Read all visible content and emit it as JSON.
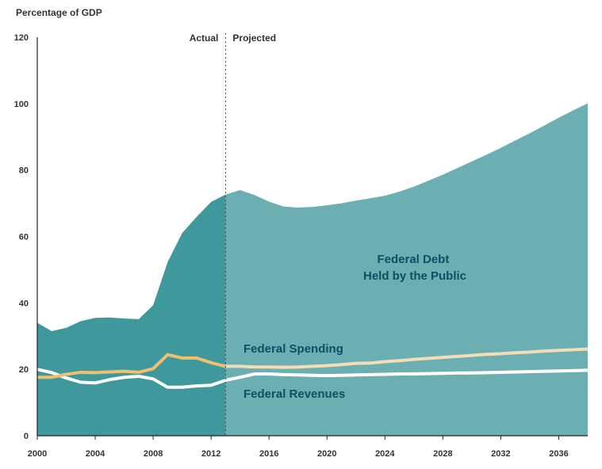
{
  "chart_data": {
    "type": "area",
    "title": "",
    "ylabel": "Percentage of GDP",
    "xlabel": "",
    "xlim": [
      2000,
      2038
    ],
    "ylim": [
      0,
      120
    ],
    "x_ticks": [
      2000,
      2004,
      2008,
      2012,
      2016,
      2020,
      2024,
      2028,
      2032,
      2036
    ],
    "y_ticks": [
      0,
      20,
      40,
      60,
      80,
      100,
      120
    ],
    "grid": false,
    "divider": {
      "x": 2013,
      "left_label": "Actual",
      "right_label": "Projected"
    },
    "colors": {
      "debt_actual": "#3f999c",
      "debt_projected": "#6bafb2",
      "spending": "#f0c070",
      "spending_projected": "#f5ddb8",
      "revenues": "#ffffff",
      "label": "#0d4f63"
    },
    "series": [
      {
        "name": "Federal Debt Held by the Public",
        "label_lines": [
          "Federal Debt",
          "Held by the Public"
        ],
        "kind": "area",
        "x": [
          2000,
          2001,
          2002,
          2003,
          2004,
          2005,
          2006,
          2007,
          2008,
          2009,
          2010,
          2011,
          2012,
          2013,
          2014,
          2015,
          2016,
          2017,
          2018,
          2019,
          2020,
          2021,
          2022,
          2023,
          2024,
          2025,
          2026,
          2027,
          2028,
          2029,
          2030,
          2031,
          2032,
          2033,
          2034,
          2035,
          2036,
          2037,
          2038
        ],
        "values": [
          34,
          31.5,
          32.5,
          34.5,
          35.5,
          35.6,
          35.3,
          35.1,
          39.3,
          52.3,
          61,
          65.9,
          70.4,
          72.6,
          74,
          72.5,
          70.5,
          69,
          68.7,
          68.9,
          69.4,
          70,
          70.8,
          71.5,
          72.3,
          73.5,
          75,
          76.8,
          78.6,
          80.6,
          82.6,
          84.6,
          86.7,
          88.9,
          91.1,
          93.4,
          95.8,
          98,
          100.1
        ]
      },
      {
        "name": "Federal Spending",
        "kind": "line",
        "x": [
          2000,
          2001,
          2002,
          2003,
          2004,
          2005,
          2006,
          2007,
          2008,
          2009,
          2010,
          2011,
          2012,
          2013,
          2014,
          2015,
          2016,
          2017,
          2018,
          2019,
          2020,
          2021,
          2022,
          2023,
          2024,
          2025,
          2026,
          2027,
          2028,
          2029,
          2030,
          2031,
          2032,
          2033,
          2034,
          2035,
          2036,
          2037,
          2038
        ],
        "values": [
          17.6,
          17.6,
          18.5,
          19.1,
          19,
          19.2,
          19.4,
          19.1,
          20.2,
          24.4,
          23.4,
          23.4,
          22,
          20.9,
          20.9,
          20.7,
          20.7,
          20.6,
          20.7,
          20.9,
          21.1,
          21.4,
          21.8,
          21.9,
          22.3,
          22.6,
          23,
          23.3,
          23.6,
          23.9,
          24.2,
          24.5,
          24.7,
          25,
          25.2,
          25.5,
          25.7,
          25.9,
          26.1
        ]
      },
      {
        "name": "Federal Revenues",
        "kind": "line",
        "x": [
          2000,
          2001,
          2002,
          2003,
          2004,
          2005,
          2006,
          2007,
          2008,
          2009,
          2010,
          2011,
          2012,
          2013,
          2014,
          2015,
          2016,
          2017,
          2018,
          2019,
          2020,
          2021,
          2022,
          2023,
          2024,
          2025,
          2026,
          2027,
          2028,
          2029,
          2030,
          2031,
          2032,
          2033,
          2034,
          2035,
          2036,
          2037,
          2038
        ],
        "values": [
          20,
          19,
          17.4,
          16.1,
          15.9,
          16.9,
          17.6,
          17.9,
          17.1,
          14.6,
          14.6,
          15,
          15.2,
          16.7,
          17.6,
          18.6,
          18.6,
          18.4,
          18.3,
          18.2,
          18.1,
          18.2,
          18.3,
          18.4,
          18.5,
          18.6,
          18.6,
          18.7,
          18.8,
          18.9,
          18.9,
          19,
          19.1,
          19.2,
          19.3,
          19.4,
          19.5,
          19.6,
          19.7
        ]
      }
    ]
  }
}
